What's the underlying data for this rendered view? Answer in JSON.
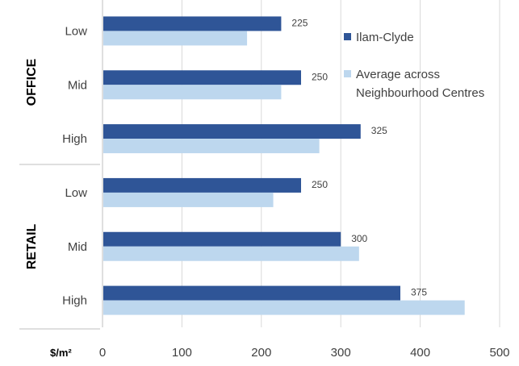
{
  "colors": {
    "primary": "#2F5597",
    "secondary": "#BDD7EE",
    "grid": "#D9D9D9",
    "axis": "#BFBFBF"
  },
  "chart_data": {
    "type": "bar",
    "orientation": "horizontal",
    "groups": [
      {
        "name": "OFFICE",
        "categories": [
          "Low",
          "Mid",
          "High"
        ]
      },
      {
        "name": "RETAIL",
        "categories": [
          "Low",
          "Mid",
          "High"
        ]
      }
    ],
    "categories": [
      "Low",
      "Mid",
      "High",
      "Low",
      "Mid",
      "High"
    ],
    "series": [
      {
        "name": "Ilam-Clyde",
        "values": [
          225,
          250,
          325,
          250,
          300,
          375
        ],
        "data_labels": [
          "225",
          "250",
          "325",
          "250",
          "300",
          "375"
        ]
      },
      {
        "name": "Average across Neighbourhood Centres",
        "legend_lines": [
          "Average across",
          "Neighbourhood Centres"
        ],
        "values": [
          182,
          225,
          273,
          215,
          323,
          456
        ]
      }
    ],
    "xlabel": "$/m²",
    "xlim": [
      0,
      500
    ],
    "xticks": [
      "0",
      "100",
      "200",
      "300",
      "400",
      "500"
    ],
    "grid": true,
    "legend": "top-right"
  }
}
